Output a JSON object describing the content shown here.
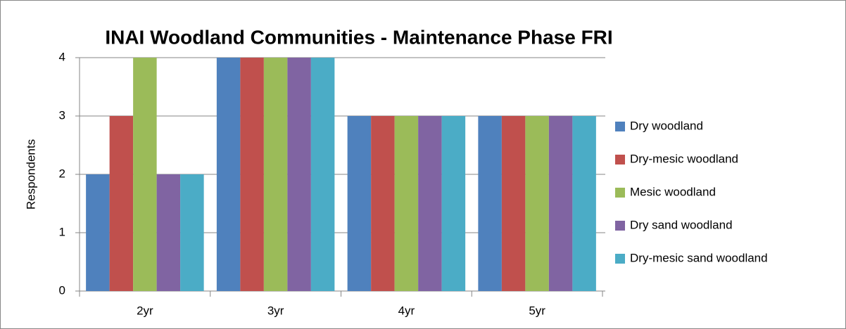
{
  "chart_data": {
    "type": "bar",
    "title": "INAI Woodland Communities - Maintenance Phase FRI",
    "ylabel": "Respondents",
    "categories": [
      "2yr",
      "3yr",
      "4yr",
      "5yr"
    ],
    "series": [
      {
        "name": "Dry woodland",
        "color": "#4f81bd",
        "values": [
          2,
          4,
          3,
          3
        ]
      },
      {
        "name": "Dry-mesic woodland",
        "color": "#c0504d",
        "values": [
          3,
          4,
          3,
          3
        ]
      },
      {
        "name": "Mesic woodland",
        "color": "#9bbb59",
        "values": [
          4,
          4,
          3,
          3
        ]
      },
      {
        "name": "Dry sand woodland",
        "color": "#8064a2",
        "values": [
          2,
          4,
          3,
          3
        ]
      },
      {
        "name": "Dry-mesic sand woodland",
        "color": "#4bacc6",
        "values": [
          2,
          4,
          3,
          3
        ]
      }
    ],
    "ylim": [
      0,
      4
    ],
    "yticks": [
      0,
      1,
      2,
      3,
      4
    ],
    "grid": true,
    "legend": "right"
  }
}
